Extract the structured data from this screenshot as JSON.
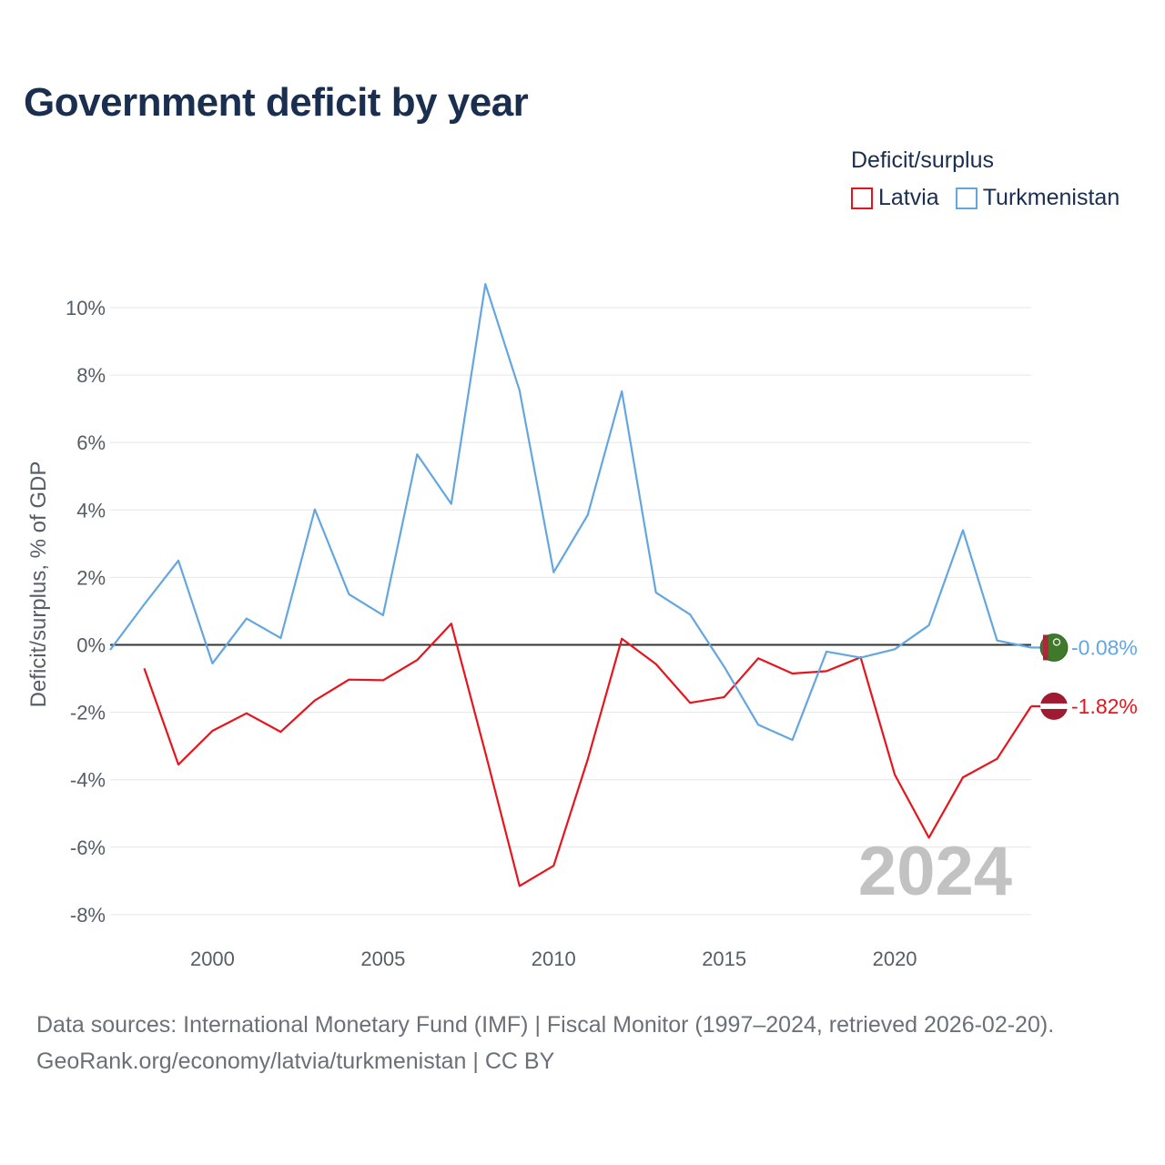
{
  "title": "Government deficit by year",
  "legend": {
    "title": "Deficit/surplus",
    "items": [
      {
        "label": "Latvia",
        "color": "#e8141c"
      },
      {
        "label": "Turkmenistan",
        "color": "#63a6e0"
      }
    ]
  },
  "footer": {
    "line1": "Data sources: International Monetary Fund (IMF) | Fiscal Monitor (1997–2024, retrieved 2026-02-20).",
    "line2": "GeoRank.org/economy/latvia/turkmenistan | CC BY"
  },
  "chart_data": {
    "type": "line",
    "title": "Government deficit by year",
    "ylabel": "Deficit/surplus, % of GDP",
    "xlabel": "",
    "xlim": [
      1997,
      2024
    ],
    "ylim": [
      -8.7,
      11
    ],
    "xticks": [
      2000,
      2005,
      2010,
      2015,
      2020
    ],
    "yticks": [
      {
        "value": 10,
        "label": "10%"
      },
      {
        "value": 8,
        "label": "8%"
      },
      {
        "value": 6,
        "label": "6%"
      },
      {
        "value": 4,
        "label": "4%"
      },
      {
        "value": 2,
        "label": "2%"
      },
      {
        "value": 0,
        "label": "0%"
      },
      {
        "value": -2,
        "label": "-2%"
      },
      {
        "value": -4,
        "label": "-4%"
      },
      {
        "value": -6,
        "label": "-6%"
      },
      {
        "value": -8,
        "label": "-8%"
      }
    ],
    "year_label": "2024",
    "series": [
      {
        "name": "Latvia",
        "color": "#e8141c",
        "end_label": "-1.82%",
        "x": [
          1998,
          1999,
          2000,
          2001,
          2002,
          2003,
          2004,
          2005,
          2006,
          2007,
          2008,
          2009,
          2010,
          2011,
          2012,
          2013,
          2014,
          2015,
          2016,
          2017,
          2018,
          2019,
          2020,
          2021,
          2022,
          2023,
          2024
        ],
        "values": [
          -0.7,
          -3.55,
          -2.55,
          -2.03,
          -2.58,
          -1.65,
          -1.03,
          -1.05,
          -0.45,
          0.63,
          -3.2,
          -7.15,
          -6.55,
          -3.4,
          0.18,
          -0.57,
          -1.72,
          -1.55,
          -0.4,
          -0.85,
          -0.78,
          -0.37,
          -3.85,
          -5.72,
          -3.93,
          -3.38,
          -1.82
        ]
      },
      {
        "name": "Turkmenistan",
        "color": "#63a6e0",
        "end_label": "-0.08%",
        "x": [
          1997,
          1998,
          1999,
          2000,
          2001,
          2002,
          2003,
          2004,
          2005,
          2006,
          2007,
          2008,
          2009,
          2010,
          2011,
          2012,
          2013,
          2014,
          2015,
          2016,
          2017,
          2018,
          2019,
          2020,
          2021,
          2022,
          2023,
          2024
        ],
        "values": [
          -0.15,
          1.2,
          2.5,
          -0.55,
          0.78,
          0.2,
          4.02,
          1.5,
          0.88,
          5.65,
          4.18,
          10.7,
          7.55,
          2.15,
          3.85,
          7.52,
          1.55,
          0.9,
          -0.65,
          -2.37,
          -2.82,
          -0.2,
          -0.38,
          -0.13,
          0.58,
          3.4,
          0.13,
          -0.08
        ]
      }
    ]
  }
}
